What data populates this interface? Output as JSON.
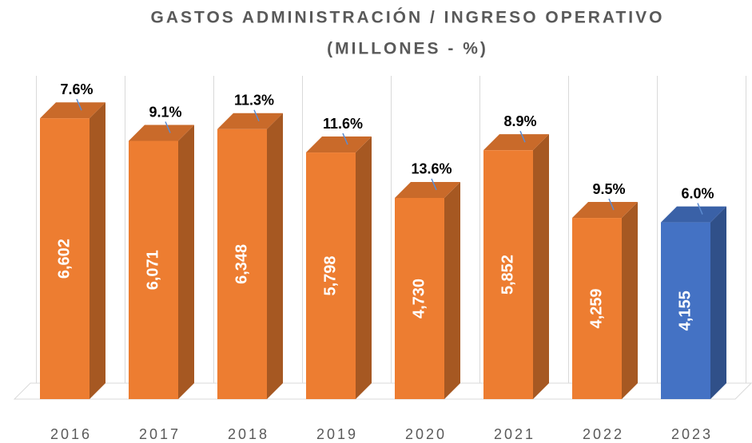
{
  "chart_data": {
    "type": "bar3d",
    "title": "GASTOS ADMINISTRACIÓN / INGRESO OPERATIVO",
    "subtitle": "(MILLONES - %)",
    "categories": [
      "2016",
      "2017",
      "2018",
      "2019",
      "2020",
      "2021",
      "2022",
      "2023"
    ],
    "values": [
      6602,
      6071,
      6348,
      5798,
      4730,
      5852,
      4259,
      4155
    ],
    "value_labels": [
      "6,602",
      "6,071",
      "6,348",
      "5,798",
      "4,730",
      "5,852",
      "4,259",
      "4,155"
    ],
    "ratios": [
      7.6,
      9.1,
      11.3,
      11.6,
      13.6,
      8.9,
      9.5,
      6.0
    ],
    "ratio_labels": [
      "7.6%",
      "9.1%",
      "11.3%",
      "11.6%",
      "13.6%",
      "8.9%",
      "9.5%",
      "6.0%"
    ],
    "colors": [
      "#ed7d31",
      "#ed7d31",
      "#ed7d31",
      "#ed7d31",
      "#ed7d31",
      "#ed7d31",
      "#ed7d31",
      "#4472c4"
    ],
    "ylim": [
      0,
      7000
    ]
  }
}
